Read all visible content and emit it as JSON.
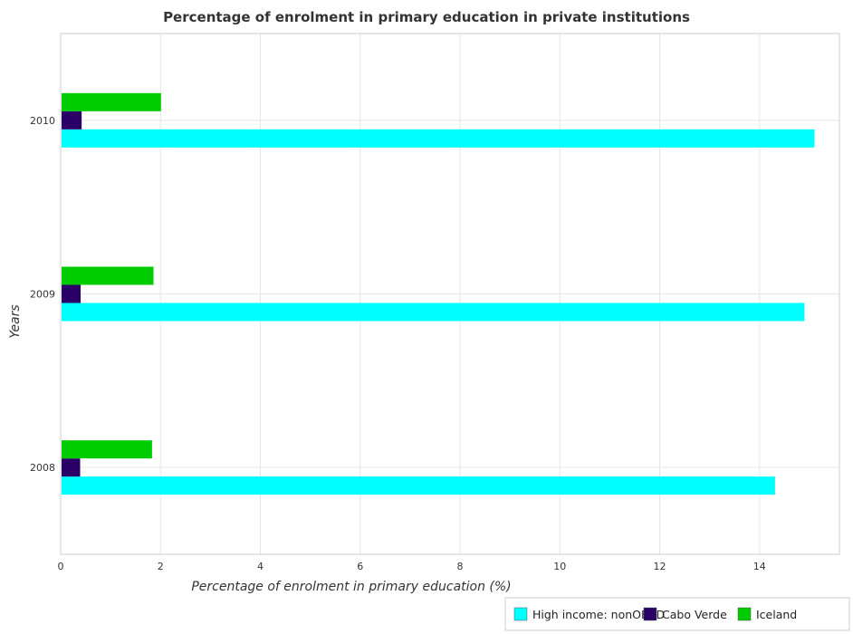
{
  "chart_data": {
    "type": "bar",
    "orientation": "horizontal",
    "title": "Percentage of enrolment in primary education in private institutions",
    "xlabel": "Percentage of enrolment in primary education (%)",
    "ylabel": "Years",
    "categories": [
      "2008",
      "2009",
      "2010"
    ],
    "xlim": [
      0,
      15.6
    ],
    "xticks": [
      0,
      2,
      4,
      6,
      8,
      10,
      12,
      14
    ],
    "grid": true,
    "legend_position": "bottom-right",
    "series": [
      {
        "name": "High income: nonOECD",
        "color": "#00ffff",
        "values": [
          14.31,
          14.9,
          15.1
        ]
      },
      {
        "name": "Cabo Verde",
        "color": "#2b0066",
        "values": [
          0.39,
          0.4,
          0.42
        ]
      },
      {
        "name": "Iceland",
        "color": "#00cc00",
        "values": [
          1.83,
          1.86,
          2.01
        ]
      }
    ]
  }
}
